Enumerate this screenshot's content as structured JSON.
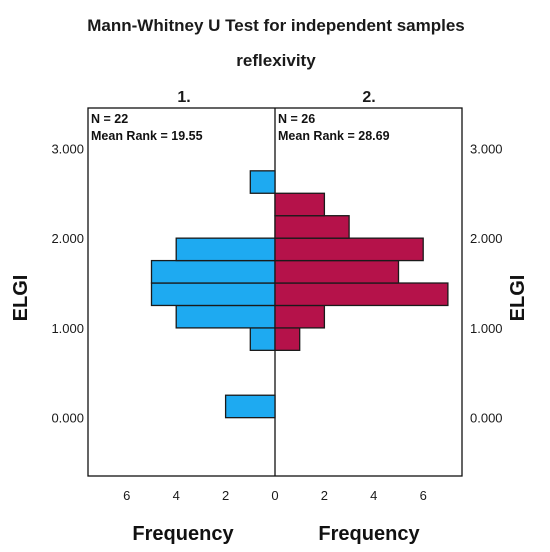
{
  "chart_data": {
    "type": "bar",
    "orientation": "back-to-back horizontal histogram",
    "title": "Mann-Whitney U Test for independent samples",
    "subtitle": "reflexivity",
    "groups": [
      {
        "label": "1.",
        "n_text": "N = 22",
        "mean_rank_text": "Mean Rank = 19.55",
        "color": "#1eaaf1",
        "bins": [
          {
            "elgi": 0.125,
            "frequency": 2
          },
          {
            "elgi": 0.875,
            "frequency": 1
          },
          {
            "elgi": 1.125,
            "frequency": 4
          },
          {
            "elgi": 1.375,
            "frequency": 5
          },
          {
            "elgi": 1.625,
            "frequency": 5
          },
          {
            "elgi": 1.875,
            "frequency": 4
          },
          {
            "elgi": 2.625,
            "frequency": 1
          }
        ]
      },
      {
        "label": "2.",
        "n_text": "N = 26",
        "mean_rank_text": "Mean Rank = 28.69",
        "color": "#b5124a",
        "bins": [
          {
            "elgi": 0.875,
            "frequency": 1
          },
          {
            "elgi": 1.125,
            "frequency": 2
          },
          {
            "elgi": 1.375,
            "frequency": 7
          },
          {
            "elgi": 1.625,
            "frequency": 5
          },
          {
            "elgi": 1.875,
            "frequency": 6
          },
          {
            "elgi": 2.125,
            "frequency": 3
          },
          {
            "elgi": 2.375,
            "frequency": 2
          }
        ]
      }
    ],
    "bin_width": 0.25,
    "ylabel": "ELGI",
    "xlabel": "Frequency",
    "y_ticks": [
      "0.000",
      "1.000",
      "2.000",
      "3.000"
    ],
    "y_tick_values": [
      0,
      1,
      2,
      3
    ],
    "x_ticks_left": [
      "6",
      "4",
      "2",
      "0"
    ],
    "x_ticks_right": [
      "2",
      "4",
      "6"
    ],
    "x_max": 8,
    "y_range": [
      -0.65,
      3.45
    ]
  }
}
